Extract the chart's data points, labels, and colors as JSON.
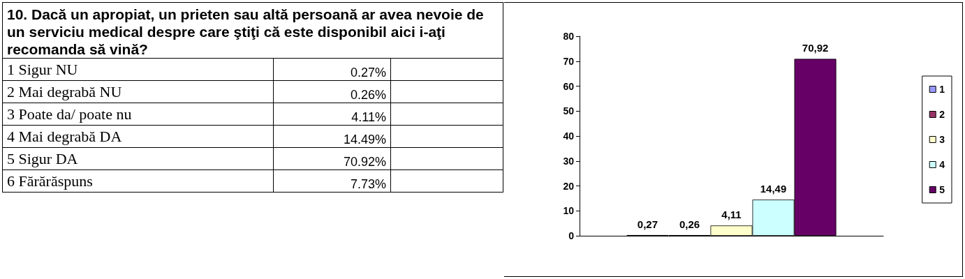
{
  "chart_data": [
    {
      "type": "other",
      "title": "10. Dacă un apropiat, un prieten sau altă persoană ar avea nevoie de un serviciu medical despre care ştiţi că este disponibil aici i-aţi recomanda să vină?",
      "annotations": [
        "1 Sigur NU",
        "0.27%",
        "2 Mai degrabă NU",
        "0.26%",
        "3 Poate da/ poate nu",
        "4.11%",
        "4 Mai degrabă DA",
        "14.49%",
        "5 Sigur DA",
        "70.92%",
        "6 Fărărăspuns",
        "7.73%"
      ]
    },
    {
      "type": "bar",
      "categories": [
        null
      ],
      "series": [
        {
          "name": "1",
          "color": "#9999ff",
          "values": [
            0.27
          ],
          "value_labels": [
            "0,27"
          ]
        },
        {
          "name": "2",
          "color": "#993366",
          "values": [
            0.26
          ],
          "value_labels": [
            "0,26"
          ]
        },
        {
          "name": "3",
          "color": "#ffffcc",
          "values": [
            4.11
          ],
          "value_labels": [
            "4,11"
          ]
        },
        {
          "name": "4",
          "color": "#ccffff",
          "values": [
            14.49
          ],
          "value_labels": [
            "14,49"
          ]
        },
        {
          "name": "5",
          "color": "#660066",
          "values": [
            70.92
          ],
          "value_labels": [
            "70,92"
          ]
        }
      ],
      "ylim": [
        0,
        80
      ],
      "yticks": [
        0,
        10,
        20,
        30,
        40,
        50,
        60,
        70,
        80
      ],
      "grid": false,
      "legend": "right"
    }
  ]
}
